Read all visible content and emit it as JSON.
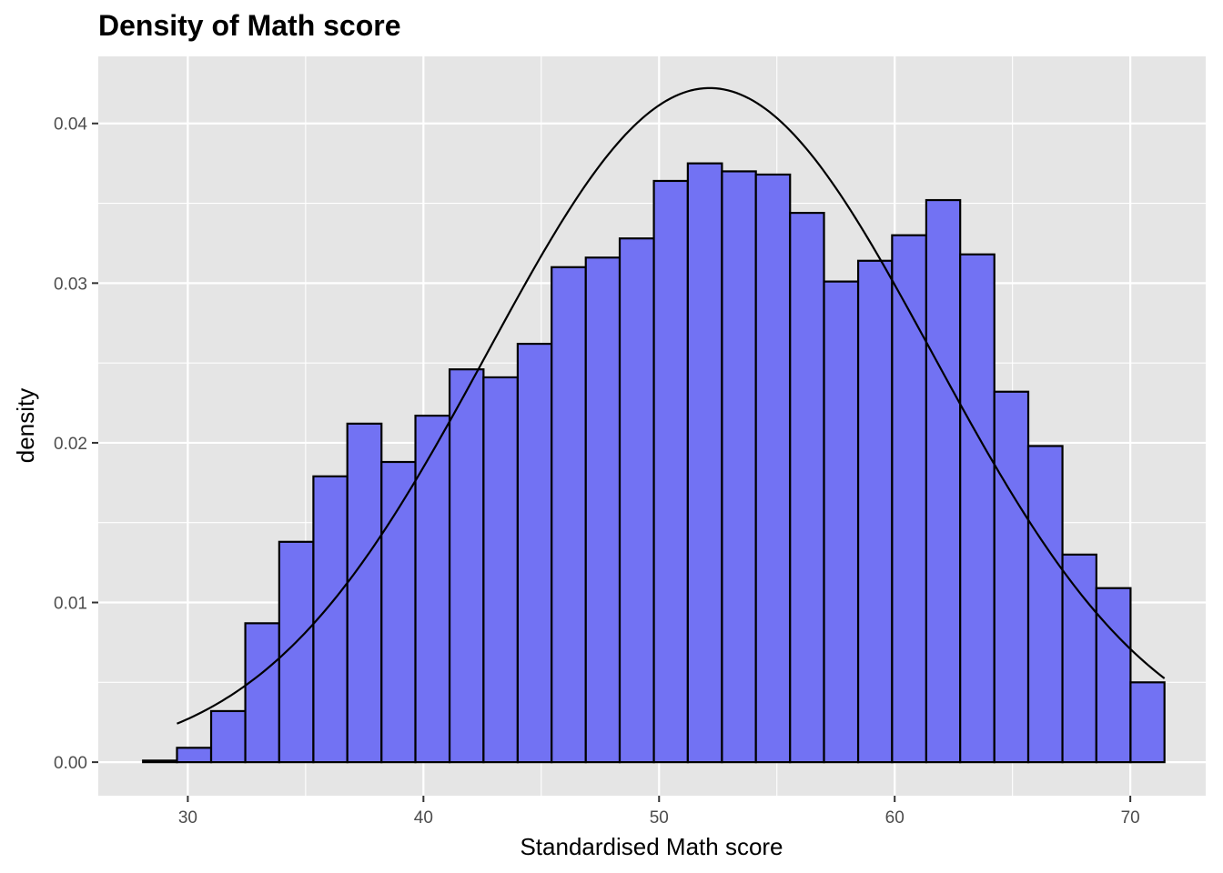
{
  "chart_data": {
    "type": "bar",
    "title": "Density of Math score",
    "xlabel": "Standardised Math score",
    "ylabel": "density",
    "xlim": [
      26.2,
      73.2
    ],
    "ylim": [
      -0.0021,
      0.0442
    ],
    "x_ticks": [
      30,
      40,
      50,
      60,
      70
    ],
    "x_tick_labels": [
      "30",
      "40",
      "50",
      "60",
      "70"
    ],
    "y_ticks": [
      0.0,
      0.01,
      0.02,
      0.03,
      0.04
    ],
    "y_tick_labels": [
      "0.00",
      "0.01",
      "0.02",
      "0.03",
      "0.04"
    ],
    "grid": true,
    "bin_edges": [
      28.1,
      29.54,
      30.99,
      32.44,
      33.88,
      35.33,
      36.77,
      38.22,
      39.66,
      41.11,
      42.55,
      44.0,
      45.44,
      46.89,
      48.33,
      49.78,
      51.22,
      52.67,
      54.11,
      55.56,
      57.0,
      58.45,
      59.89,
      61.34,
      62.78,
      64.23,
      65.67,
      67.12,
      68.56,
      70.01,
      71.45
    ],
    "values": [
      0.0001,
      0.0009,
      0.0032,
      0.0087,
      0.0138,
      0.0179,
      0.0212,
      0.0188,
      0.0217,
      0.0246,
      0.0241,
      0.0262,
      0.031,
      0.0316,
      0.0328,
      0.0364,
      0.0375,
      0.037,
      0.0368,
      0.0344,
      0.0301,
      0.0314,
      0.033,
      0.0352,
      0.0318,
      0.0232,
      0.0198,
      0.013,
      0.0109,
      0.005
    ],
    "normal_curve": {
      "mean": 52.15,
      "sd": 9.45,
      "x_range": [
        29.54,
        71.45
      ]
    },
    "colors": {
      "bar_fill": "#7272f3",
      "bar_outline": "#000000",
      "panel": "#e5e5e5",
      "grid": "#ffffff",
      "curve": "#000000"
    }
  }
}
